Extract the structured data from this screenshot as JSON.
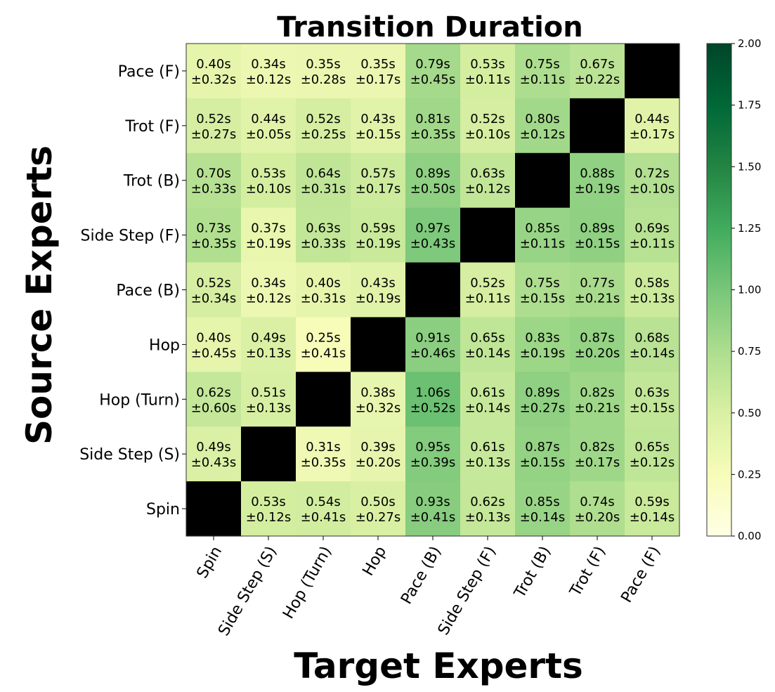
{
  "chart_data": {
    "type": "heatmap",
    "title": "Transition Duration",
    "xlabel": "Target Experts",
    "ylabel": "Source Experts",
    "x_categories": [
      "Spin",
      "Side Step (S)",
      "Hop (Turn)",
      "Hop",
      "Pace (B)",
      "Side Step (F)",
      "Trot (B)",
      "Trot (F)",
      "Pace (F)"
    ],
    "y_categories": [
      "Pace (F)",
      "Trot (F)",
      "Trot (B)",
      "Side Step (F)",
      "Pace (B)",
      "Hop",
      "Hop (Turn)",
      "Side Step (S)",
      "Spin"
    ],
    "values": [
      [
        0.4,
        0.34,
        0.35,
        0.35,
        0.79,
        0.53,
        0.75,
        0.67,
        null
      ],
      [
        0.52,
        0.44,
        0.52,
        0.43,
        0.81,
        0.52,
        0.8,
        null,
        0.44
      ],
      [
        0.7,
        0.53,
        0.64,
        0.57,
        0.89,
        0.63,
        null,
        0.88,
        0.72
      ],
      [
        0.73,
        0.37,
        0.63,
        0.59,
        0.97,
        null,
        0.85,
        0.89,
        0.69
      ],
      [
        0.52,
        0.34,
        0.4,
        0.43,
        null,
        0.52,
        0.75,
        0.77,
        0.58
      ],
      [
        0.4,
        0.49,
        0.25,
        null,
        0.91,
        0.65,
        0.83,
        0.87,
        0.68
      ],
      [
        0.62,
        0.51,
        null,
        0.38,
        1.06,
        0.61,
        0.89,
        0.82,
        0.63
      ],
      [
        0.49,
        null,
        0.31,
        0.39,
        0.95,
        0.61,
        0.87,
        0.82,
        0.65
      ],
      [
        null,
        0.53,
        0.54,
        0.5,
        0.93,
        0.62,
        0.85,
        0.74,
        0.59
      ]
    ],
    "std": [
      [
        0.32,
        0.12,
        0.28,
        0.17,
        0.45,
        0.11,
        0.11,
        0.22,
        null
      ],
      [
        0.27,
        0.05,
        0.25,
        0.15,
        0.35,
        0.1,
        0.12,
        null,
        0.17
      ],
      [
        0.33,
        0.1,
        0.31,
        0.17,
        0.5,
        0.12,
        null,
        0.19,
        0.1
      ],
      [
        0.35,
        0.19,
        0.33,
        0.19,
        0.43,
        null,
        0.11,
        0.15,
        0.11
      ],
      [
        0.34,
        0.12,
        0.31,
        0.19,
        null,
        0.11,
        0.15,
        0.21,
        0.13
      ],
      [
        0.45,
        0.13,
        0.41,
        null,
        0.46,
        0.14,
        0.19,
        0.2,
        0.14
      ],
      [
        0.6,
        0.13,
        null,
        0.32,
        0.52,
        0.14,
        0.27,
        0.21,
        0.15
      ],
      [
        0.43,
        null,
        0.35,
        0.2,
        0.39,
        0.13,
        0.15,
        0.17,
        0.12
      ],
      [
        null,
        0.12,
        0.41,
        0.27,
        0.41,
        0.13,
        0.14,
        0.2,
        0.14
      ]
    ],
    "value_suffix": "s",
    "std_prefix": "±",
    "missing_color": "#000000",
    "colormap": "Greens",
    "colormap_stops": [
      "#ffffe5",
      "#f7fcb9",
      "#d9f0a3",
      "#addd8e",
      "#78c679",
      "#41ab5d",
      "#238443",
      "#006837",
      "#004529"
    ],
    "vmin": 0.0,
    "vmax": 2.0,
    "colorbar_ticks": [
      "0.00",
      "0.25",
      "0.50",
      "0.75",
      "1.00",
      "1.25",
      "1.50",
      "1.75",
      "2.00"
    ],
    "grid": false
  }
}
